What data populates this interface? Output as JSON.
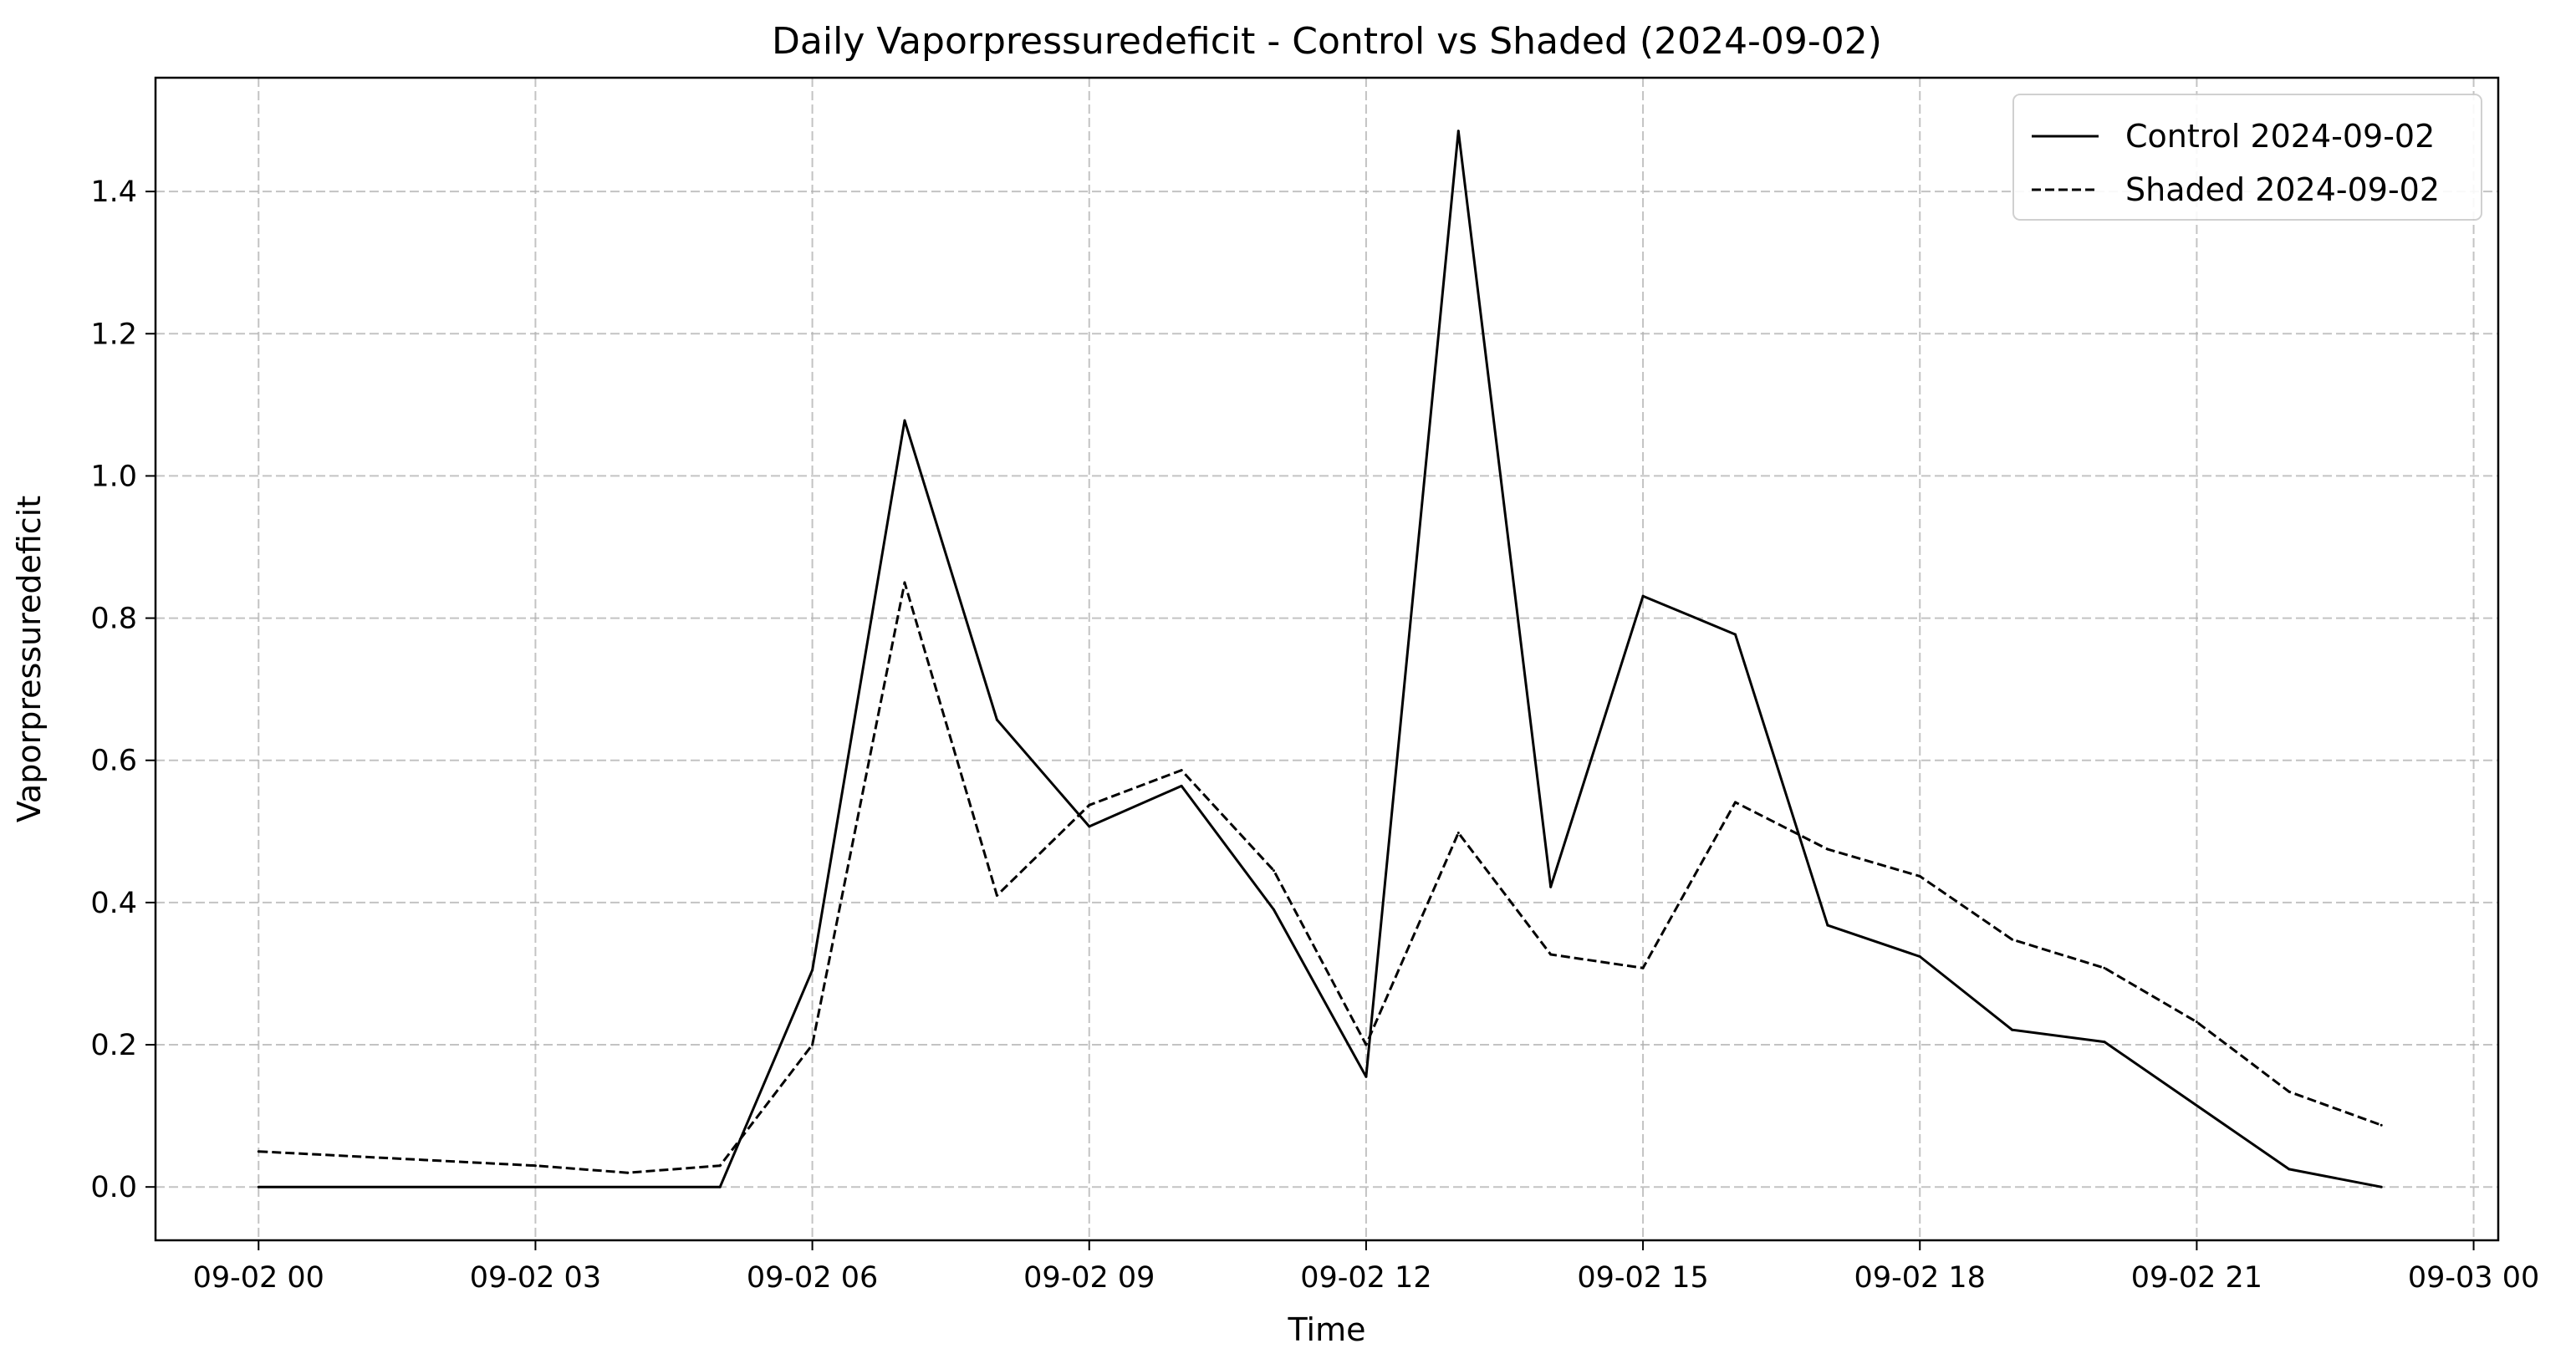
{
  "chart_data": {
    "type": "line",
    "title": "Daily Vaporpressuredeficit - Control vs Shaded (2024-09-02)",
    "xlabel": "Time",
    "ylabel": "Vaporpressuredeficit",
    "xlim": [
      "2024-09-01 22:53",
      "2024-09-03 00:16"
    ],
    "ylim": [
      -0.075,
      1.56
    ],
    "x_ticks": [
      {
        "value": "2024-09-02 00:00",
        "label": "09-02 00"
      },
      {
        "value": "2024-09-02 03:00",
        "label": "09-02 03"
      },
      {
        "value": "2024-09-02 06:00",
        "label": "09-02 06"
      },
      {
        "value": "2024-09-02 09:00",
        "label": "09-02 09"
      },
      {
        "value": "2024-09-02 12:00",
        "label": "09-02 12"
      },
      {
        "value": "2024-09-02 15:00",
        "label": "09-02 15"
      },
      {
        "value": "2024-09-02 18:00",
        "label": "09-02 18"
      },
      {
        "value": "2024-09-02 21:00",
        "label": "09-02 21"
      },
      {
        "value": "2024-09-03 00:00",
        "label": "09-03 00"
      }
    ],
    "y_ticks": [
      {
        "value": 0.0,
        "label": "0.0"
      },
      {
        "value": 0.2,
        "label": "0.2"
      },
      {
        "value": 0.4,
        "label": "0.4"
      },
      {
        "value": 0.6,
        "label": "0.6"
      },
      {
        "value": 0.8,
        "label": "0.8"
      },
      {
        "value": 1.0,
        "label": "1.0"
      },
      {
        "value": 1.2,
        "label": "1.2"
      },
      {
        "value": 1.4,
        "label": "1.4"
      }
    ],
    "grid": true,
    "legend": "top-right",
    "series": [
      {
        "name": "Control 2024-09-02",
        "color": "#000000",
        "style": "solid",
        "points": [
          {
            "x": "2024-09-02 00:00",
            "y": 0.0
          },
          {
            "x": "2024-09-02 05:00",
            "y": 0.0
          },
          {
            "x": "2024-09-02 06:00",
            "y": 0.305
          },
          {
            "x": "2024-09-02 07:00",
            "y": 1.078
          },
          {
            "x": "2024-09-02 08:00",
            "y": 0.657
          },
          {
            "x": "2024-09-02 09:00",
            "y": 0.507
          },
          {
            "x": "2024-09-02 10:00",
            "y": 0.564
          },
          {
            "x": "2024-09-02 11:00",
            "y": 0.39
          },
          {
            "x": "2024-09-02 12:00",
            "y": 0.155
          },
          {
            "x": "2024-09-02 13:00",
            "y": 1.485
          },
          {
            "x": "2024-09-02 14:00",
            "y": 0.422
          },
          {
            "x": "2024-09-02 15:00",
            "y": 0.831
          },
          {
            "x": "2024-09-02 16:00",
            "y": 0.777
          },
          {
            "x": "2024-09-02 17:00",
            "y": 0.368
          },
          {
            "x": "2024-09-02 18:00",
            "y": 0.324
          },
          {
            "x": "2024-09-02 19:00",
            "y": 0.221
          },
          {
            "x": "2024-09-02 20:00",
            "y": 0.204
          },
          {
            "x": "2024-09-02 22:00",
            "y": 0.025
          },
          {
            "x": "2024-09-02 23:00",
            "y": 0.0
          }
        ]
      },
      {
        "name": "Shaded 2024-09-02",
        "color": "#000000",
        "style": "dashed",
        "points": [
          {
            "x": "2024-09-02 00:00",
            "y": 0.05
          },
          {
            "x": "2024-09-02 03:00",
            "y": 0.03
          },
          {
            "x": "2024-09-02 04:00",
            "y": 0.02
          },
          {
            "x": "2024-09-02 05:00",
            "y": 0.03
          },
          {
            "x": "2024-09-02 06:00",
            "y": 0.2
          },
          {
            "x": "2024-09-02 07:00",
            "y": 0.85
          },
          {
            "x": "2024-09-02 08:00",
            "y": 0.41
          },
          {
            "x": "2024-09-02 09:00",
            "y": 0.537
          },
          {
            "x": "2024-09-02 10:00",
            "y": 0.586
          },
          {
            "x": "2024-09-02 11:00",
            "y": 0.445
          },
          {
            "x": "2024-09-02 12:00",
            "y": 0.2
          },
          {
            "x": "2024-09-02 13:00",
            "y": 0.498
          },
          {
            "x": "2024-09-02 14:00",
            "y": 0.327
          },
          {
            "x": "2024-09-02 15:00",
            "y": 0.308
          },
          {
            "x": "2024-09-02 16:00",
            "y": 0.541
          },
          {
            "x": "2024-09-02 17:00",
            "y": 0.475
          },
          {
            "x": "2024-09-02 18:00",
            "y": 0.437
          },
          {
            "x": "2024-09-02 19:00",
            "y": 0.348
          },
          {
            "x": "2024-09-02 20:00",
            "y": 0.308
          },
          {
            "x": "2024-09-02 21:00",
            "y": 0.232
          },
          {
            "x": "2024-09-02 22:00",
            "y": 0.134
          },
          {
            "x": "2024-09-02 23:00",
            "y": 0.087
          }
        ]
      }
    ]
  }
}
